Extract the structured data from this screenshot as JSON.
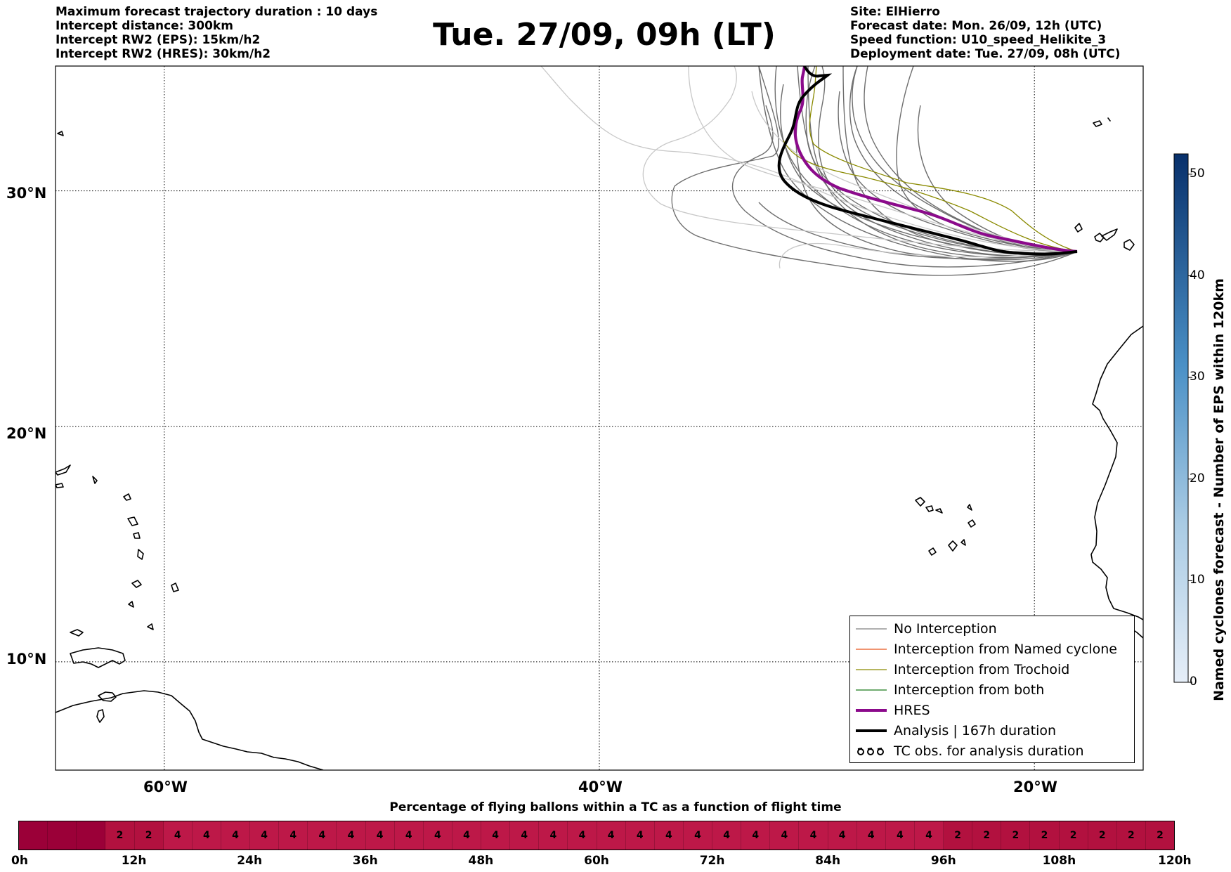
{
  "header": {
    "left": [
      "Maximum forecast trajectory duration : 10 days",
      "Intercept distance: 300km",
      "Intercept RW2 (EPS):  15km/h2",
      "Intercept RW2 (HRES): 30km/h2"
    ],
    "title": "Tue. 27/09, 09h (LT)",
    "right": [
      "Site: ElHierro",
      "Forecast date: Mon. 26/09, 12h (UTC)",
      "Speed function: U10_speed_Helikite_3",
      "Deployment date: Tue. 27/09, 08h (UTC)"
    ]
  },
  "map": {
    "lat_labels": [
      "30°N",
      "20°N",
      "10°N"
    ],
    "lon_labels": [
      "60°W",
      "40°W",
      "20°W"
    ],
    "lat_values": [
      30,
      20,
      10
    ],
    "lon_values": [
      -60,
      -40,
      -20
    ],
    "extent": {
      "lon_min": -65,
      "lon_max": -15,
      "lat_min": 5.4,
      "lat_max": 35.3
    },
    "colors": {
      "no_interception": "#6e6e6e",
      "faded": "#c8c8c8",
      "trochoid": "#8a8a00",
      "hres": "#8b0a8b",
      "analysis": "#000000"
    }
  },
  "legend": [
    {
      "label": "No Interception",
      "color": "#808080",
      "style": "thin"
    },
    {
      "label": "Interception from Named cyclone",
      "color": "#e8541c",
      "style": "thin"
    },
    {
      "label": "Interception from Trochoid",
      "color": "#8a8a00",
      "style": "thin"
    },
    {
      "label": "Interception from both",
      "color": "#1a7a1a",
      "style": "thin"
    },
    {
      "label": "HRES",
      "color": "#8b0a8b",
      "style": "thick"
    },
    {
      "label": "Analysis | 167h duration",
      "color": "#000000",
      "style": "thick"
    },
    {
      "label": "TC obs. for analysis duration",
      "color": "#000000",
      "style": "tc-symbol"
    }
  ],
  "colorbar": {
    "label": "Named cyclones forecast - Number of EPS within 120km",
    "ticks": [
      "0",
      "10",
      "20",
      "30",
      "40",
      "50"
    ],
    "min": 0,
    "max": 52,
    "color_low": "#e6eef8",
    "color_high": "#08306b"
  },
  "percentage_bar": {
    "title": "Percentage of flying ballons within a TC as a function of flight time",
    "values": [
      "",
      "",
      "",
      "2",
      "2",
      "4",
      "4",
      "4",
      "4",
      "4",
      "4",
      "4",
      "4",
      "4",
      "4",
      "4",
      "4",
      "4",
      "4",
      "4",
      "4",
      "4",
      "4",
      "4",
      "4",
      "4",
      "4",
      "4",
      "4",
      "4",
      "4",
      "4",
      "2",
      "2",
      "2",
      "2",
      "2",
      "2",
      "2",
      "2"
    ],
    "time_labels": [
      "0h",
      "12h",
      "24h",
      "36h",
      "48h",
      "60h",
      "72h",
      "84h",
      "96h",
      "108h",
      "120h"
    ],
    "colors": {
      "zero": "#9b0038",
      "two": "#b2113f",
      "four": "#bd1848"
    }
  }
}
